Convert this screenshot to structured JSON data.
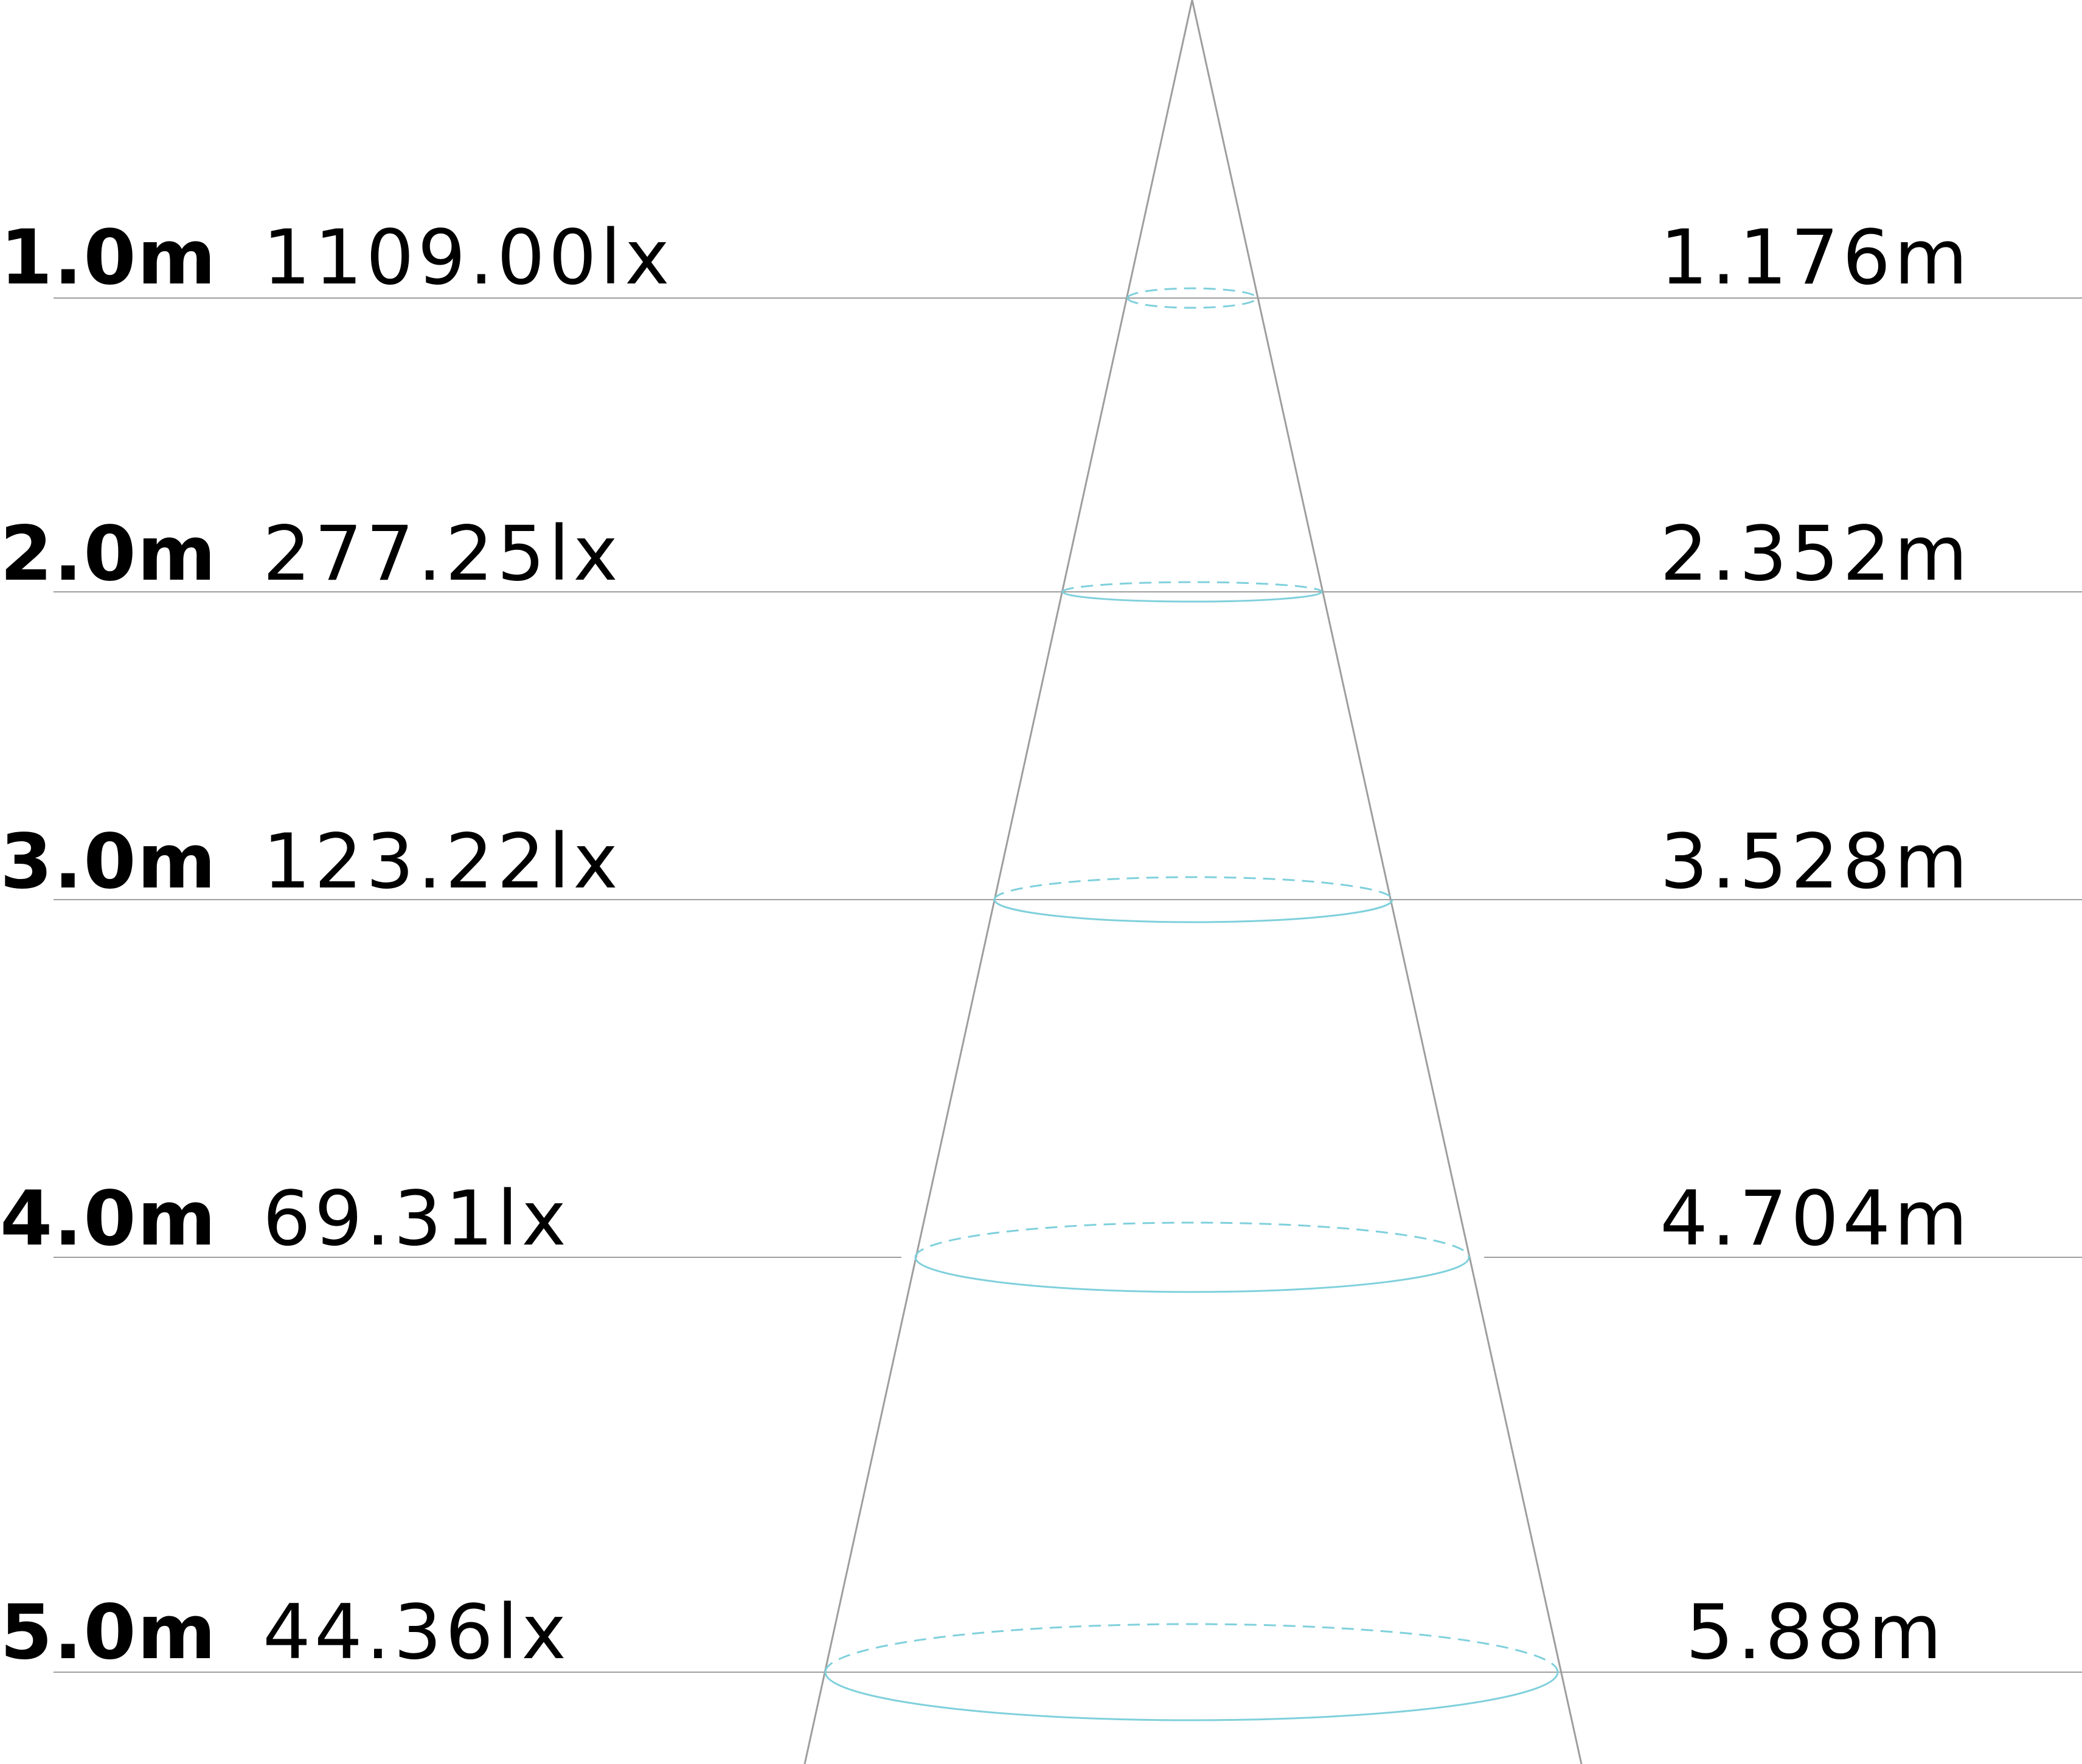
{
  "colors": {
    "background": "#ffffff",
    "text": "#000000",
    "grid_line": "#9e9e9e",
    "cone_line": "#9e9e9e",
    "beam_ellipse": "#7fd0dc"
  },
  "rows": [
    {
      "distance": "1.0m",
      "illuminance": "1109.00lx",
      "diameter": "1.176m"
    },
    {
      "distance": "2.0m",
      "illuminance": "277.25lx",
      "diameter": "2.352m"
    },
    {
      "distance": "3.0m",
      "illuminance": "123.22lx",
      "diameter": "3.528m"
    },
    {
      "distance": "4.0m",
      "illuminance": "69.31lx",
      "diameter": "4.704m"
    },
    {
      "distance": "5.0m",
      "illuminance": "44.36lx",
      "diameter": "5.88m"
    }
  ]
}
